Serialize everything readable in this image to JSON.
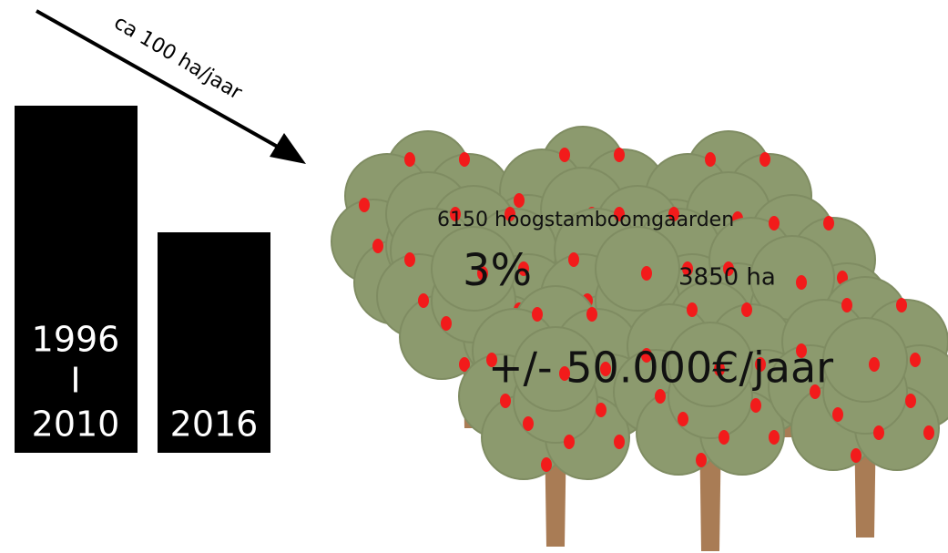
{
  "arrow_label": "ca 100 ha/jaar",
  "bars": [
    {
      "label_lines": [
        "1996",
        "I",
        "2010"
      ]
    },
    {
      "label_lines": [
        "2016"
      ]
    }
  ],
  "stats": {
    "orchards": "6150 hoogstamboomgaarden",
    "share": "3%",
    "area": "3850 ha",
    "value": "+/- 50.000€/jaar"
  }
}
